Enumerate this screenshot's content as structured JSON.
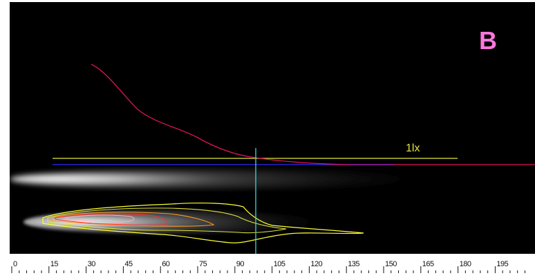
{
  "panel": {
    "letter": "B",
    "letter_color": "#ff77dd"
  },
  "plot": {
    "background": "#000000",
    "ruler_background": "#ffffff",
    "iso_label": "1lx",
    "iso_color": "#e0e63c",
    "falloff_curve_color": "#e0105a",
    "falloff_tail_color": "#c020d0",
    "cutoff_color": "#2a2aff",
    "cursor_color": "#39d7e0",
    "contour_colors": [
      "#ffff33",
      "#e0e040",
      "#ff9a20",
      "#ff3030",
      "#ffb0c0"
    ]
  },
  "ruler": {
    "ticks": [
      "0",
      "15",
      "30",
      "45",
      "60",
      "75",
      "90",
      "105",
      "120",
      "135",
      "150",
      "165",
      "180",
      "195"
    ],
    "minor_per_major": 5
  }
}
